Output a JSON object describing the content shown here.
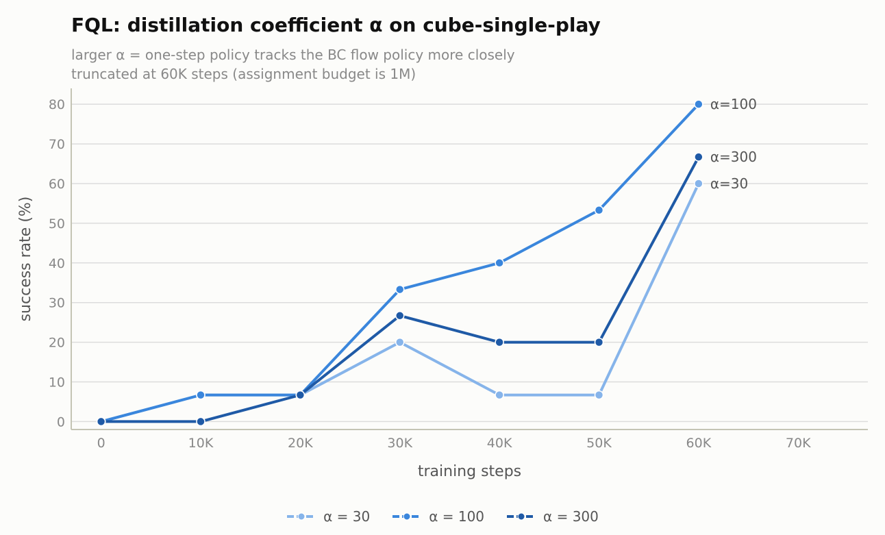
{
  "title": "FQL: distillation coefficient α on cube-single-play",
  "subtitle_lines": [
    "larger α = one-step policy tracks the BC flow policy more closely",
    "truncated at 60K steps (assignment budget is 1M)"
  ],
  "chart_data": {
    "type": "line",
    "xlabel": "training steps",
    "ylabel": "success rate (%)",
    "xlim": [
      -3000,
      77000
    ],
    "ylim": [
      -2,
      84
    ],
    "x_ticks": [
      0,
      10000,
      20000,
      30000,
      40000,
      50000,
      60000,
      70000
    ],
    "x_tick_labels": [
      "0",
      "10K",
      "20K",
      "30K",
      "40K",
      "50K",
      "60K",
      "70K"
    ],
    "y_ticks": [
      0,
      10,
      20,
      30,
      40,
      50,
      60,
      70,
      80
    ],
    "y_tick_labels": [
      "0",
      "10",
      "20",
      "30",
      "40",
      "50",
      "60",
      "70",
      "80"
    ],
    "grid": "horizontal",
    "legend_position": "bottom-center",
    "x": [
      0,
      10000,
      20000,
      30000,
      40000,
      50000,
      60000
    ],
    "series": [
      {
        "name": "α = 30",
        "end_label": "α=30",
        "color": "#86b4ea",
        "values": [
          0,
          6.7,
          6.7,
          20,
          6.7,
          6.7,
          60
        ]
      },
      {
        "name": "α = 100",
        "end_label": "α=100",
        "color": "#3a86dc",
        "values": [
          0,
          6.7,
          6.7,
          33.3,
          40,
          53.3,
          80
        ]
      },
      {
        "name": "α = 300",
        "end_label": "α=300",
        "color": "#1f5aa6",
        "values": [
          0,
          0,
          6.7,
          26.7,
          20,
          20,
          66.7
        ]
      }
    ]
  }
}
